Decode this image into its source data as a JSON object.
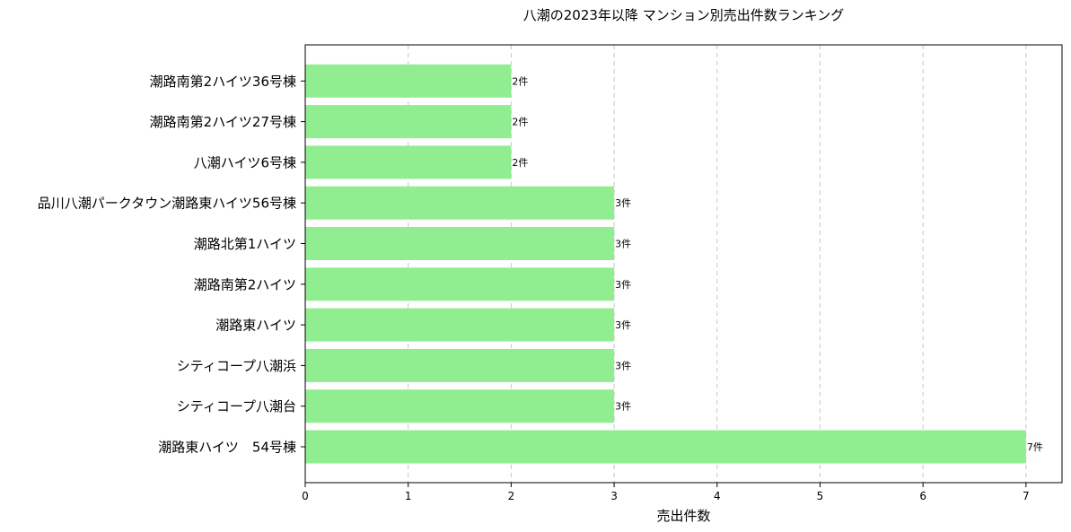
{
  "chart_data": {
    "type": "bar",
    "orientation": "horizontal",
    "title": "八潮の2023年以降 マンション別売出件数ランキング",
    "xlabel": "売出件数",
    "ylabel": "",
    "categories": [
      "潮路南第2ハイツ36号棟",
      "潮路南第2ハイツ27号棟",
      "八潮ハイツ6号棟",
      "品川八潮パークタウン潮路東ハイツ56号棟",
      "潮路北第1ハイツ",
      "潮路南第2ハイツ",
      "潮路東ハイツ",
      "シティコープ八潮浜",
      "シティコープ八潮台",
      "潮路東ハイツ　54号棟"
    ],
    "values": [
      2,
      2,
      2,
      3,
      3,
      3,
      3,
      3,
      3,
      7
    ],
    "data_labels": [
      "2件",
      "2件",
      "2件",
      "3件",
      "3件",
      "3件",
      "3件",
      "3件",
      "3件",
      "7件"
    ],
    "xticks": [
      "0",
      "1",
      "2",
      "3",
      "4",
      "5",
      "6",
      "7"
    ],
    "xlim": [
      0,
      7.35
    ],
    "grid": "x-dashed",
    "bar_color": "#90ee90"
  }
}
